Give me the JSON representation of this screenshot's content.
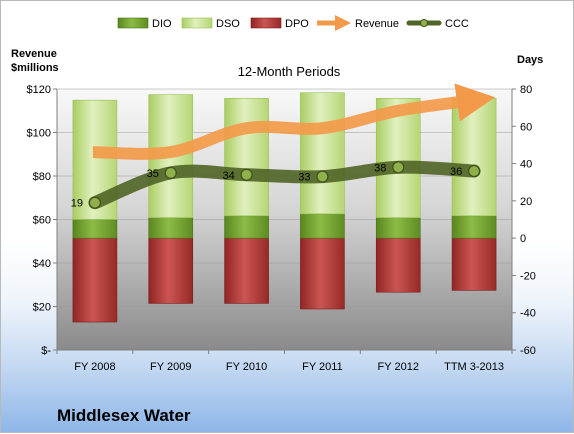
{
  "company": "Middlesex Water",
  "chart_data": {
    "type": "bar",
    "title": "12-Month Periods",
    "categories": [
      "FY 2008",
      "FY 2009",
      "FY 2010",
      "FY 2011",
      "FY 2012",
      "TTM 3-2013"
    ],
    "ylabel_left": "Revenue $millions",
    "ylabel_right": "Days",
    "y_left": {
      "range": [
        0,
        120
      ],
      "ticks": [
        0,
        20,
        40,
        60,
        80,
        100,
        120
      ],
      "tick_labels": [
        "$-",
        "$20",
        "$40",
        "$60",
        "$80",
        "$100",
        "$120"
      ]
    },
    "y_right": {
      "range": [
        -60,
        80
      ],
      "ticks": [
        -60,
        -40,
        -20,
        0,
        20,
        40,
        60,
        80
      ]
    },
    "legend_position": "top",
    "series": [
      {
        "name": "DIO",
        "kind": "stacked-bar",
        "axis": "right",
        "color": "#6e9e2c",
        "values": [
          10,
          11,
          12,
          13,
          11,
          12
        ]
      },
      {
        "name": "DSO",
        "kind": "stacked-bar",
        "axis": "right",
        "color": "#c4e08a",
        "values": [
          64,
          66,
          63,
          65,
          64,
          63
        ]
      },
      {
        "name": "DPO",
        "kind": "bar-below-zero",
        "axis": "right",
        "color": "#b23a38",
        "values": [
          -45,
          -35,
          -35,
          -38,
          -29,
          -28
        ]
      },
      {
        "name": "Revenue",
        "kind": "line",
        "axis": "left",
        "color": "#f39a4a",
        "values": [
          91,
          91,
          102,
          102,
          110,
          115
        ]
      },
      {
        "name": "CCC",
        "kind": "line-markers",
        "axis": "right",
        "color": "#556b2c",
        "values": [
          19,
          35,
          34,
          33,
          38,
          36
        ]
      }
    ]
  }
}
